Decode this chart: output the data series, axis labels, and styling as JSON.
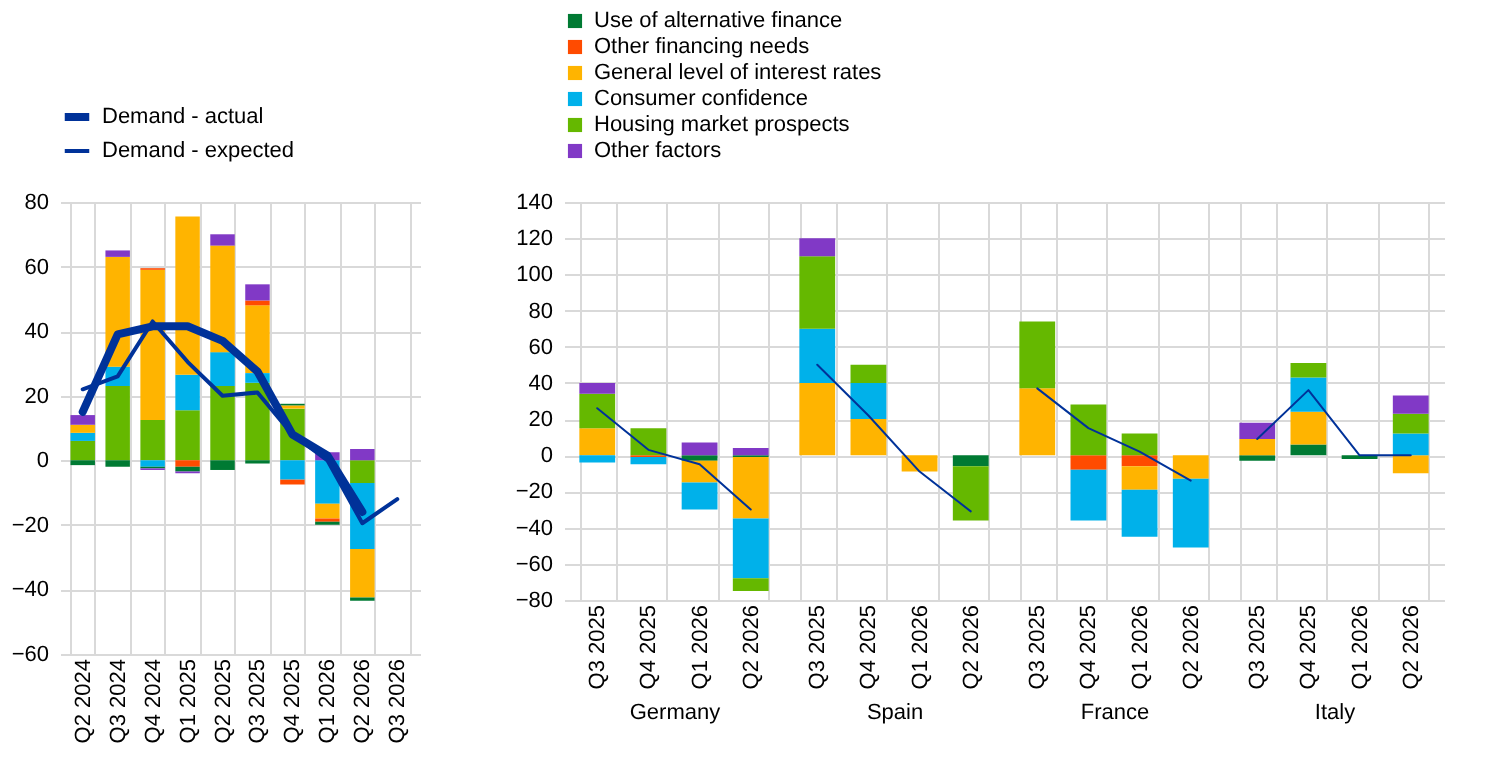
{
  "chart_data": [
    {
      "type": "bar",
      "stacked": true,
      "categories": [
        "Q2 2024",
        "Q3 2024",
        "Q4 2024",
        "Q1 2025",
        "Q2 2025",
        "Q3 2025",
        "Q4 2025",
        "Q1 2026",
        "Q2 2026",
        "Q3 2026"
      ],
      "ylim": [
        -60,
        80
      ],
      "yticks": [
        -60,
        -40,
        -20,
        0,
        20,
        40,
        60,
        80
      ],
      "grid": true,
      "legend": "top left",
      "series": [
        {
          "color": "#65b800",
          "values": [
            6,
            23,
            12.5,
            15.5,
            23,
            24,
            16,
            null,
            -7,
            null
          ]
        },
        {
          "color": "#00b1ea",
          "values": [
            2.5,
            6,
            -2,
            11,
            10.5,
            3,
            -6,
            -13.5,
            -20.5,
            null
          ]
        },
        {
          "color": "#ffb400",
          "values": [
            2.5,
            34,
            46.5,
            49,
            33,
            21,
            1,
            -4.5,
            -15,
            null
          ]
        },
        {
          "color": "#ff4b00",
          "values": [
            null,
            null,
            0.5,
            -2,
            null,
            1.5,
            -1.5,
            -1,
            null,
            null
          ]
        },
        {
          "color": "#007a33",
          "values": [
            -1.5,
            -2,
            -0.5,
            -1.5,
            -3,
            -1,
            0.5,
            -1,
            -1,
            null
          ]
        },
        {
          "color": "#8139c6",
          "values": [
            3,
            2,
            -0.5,
            -0.5,
            3.5,
            5,
            null,
            2.5,
            3.5,
            null
          ]
        },
        {
          "type": "line",
          "name": "Demand - actual",
          "color": "#003299",
          "values": [
            15,
            39,
            41.5,
            41.5,
            37,
            27.5,
            8,
            1.5,
            -16,
            null
          ]
        },
        {
          "type": "line",
          "name": "Demand - expected",
          "color": "#003299",
          "values": [
            22,
            26,
            43,
            30.5,
            20,
            21,
            8,
            0,
            -19.5,
            -12
          ]
        }
      ]
    },
    {
      "type": "bar",
      "stacked": true,
      "categories": [
        "Q3 2025",
        "Q4 2025",
        "Q1 2026",
        "Q2 2026"
      ],
      "xlabel": "Germany",
      "ylim": [
        -80,
        140
      ],
      "yticks": [
        -80,
        -60,
        -40,
        -20,
        0,
        20,
        40,
        60,
        80,
        100,
        120,
        140
      ],
      "grid": true,
      "legend": "top",
      "series": [
        {
          "name": "Use of alternative finance",
          "color": "#007a33",
          "values": [
            null,
            null,
            -3,
            -1
          ]
        },
        {
          "name": "Other financing needs",
          "color": "#ff4b00",
          "values": [
            null,
            -1,
            null,
            null
          ]
        },
        {
          "name": "General level of interest rates",
          "color": "#ffb400",
          "values": [
            15,
            null,
            -12,
            -34
          ]
        },
        {
          "name": "Consumer confidence",
          "color": "#00b1ea",
          "values": [
            -4,
            -4,
            -15,
            -33
          ]
        },
        {
          "name": "Housing market prospects",
          "color": "#65b800",
          "values": [
            19,
            15,
            null,
            -7
          ]
        },
        {
          "name": "Other factors",
          "color": "#8139c6",
          "values": [
            6,
            null,
            7,
            4
          ]
        },
        {
          "type": "line",
          "color": "#003299",
          "values": [
            26,
            3,
            -5,
            -30
          ]
        }
      ]
    },
    {
      "type": "bar",
      "stacked": true,
      "categories": [
        "Q3 2025",
        "Q4 2025",
        "Q1 2026",
        "Q2 2026"
      ],
      "xlabel": "Spain",
      "ylim": [
        -80,
        140
      ],
      "yticks": [
        -80,
        -60,
        -40,
        -20,
        0,
        20,
        40,
        60,
        80,
        100,
        120,
        140
      ],
      "grid": true,
      "tick_labels": "x",
      "series": [
        {
          "color": "#007a33",
          "values": [
            null,
            null,
            null,
            -6
          ]
        },
        {
          "color": "#ffb400",
          "values": [
            40,
            20,
            -9,
            null
          ]
        },
        {
          "color": "#00b1ea",
          "values": [
            30,
            20,
            null,
            null
          ]
        },
        {
          "color": "#65b800",
          "values": [
            40,
            10,
            null,
            -30
          ]
        },
        {
          "color": "#8139c6",
          "values": [
            10,
            null,
            null,
            null
          ]
        },
        {
          "type": "line",
          "color": "#003299",
          "values": [
            50,
            22,
            -9,
            -31
          ]
        }
      ]
    },
    {
      "type": "bar",
      "stacked": true,
      "categories": [
        "Q3 2025",
        "Q4 2025",
        "Q1 2026",
        "Q2 2026"
      ],
      "xlabel": "France",
      "ylim": [
        -80,
        140
      ],
      "yticks": [
        -80,
        -60,
        -40,
        -20,
        0,
        20,
        40,
        60,
        80,
        100,
        120,
        140
      ],
      "grid": true,
      "tick_labels": "x",
      "series": [
        {
          "color": "#ff4b00",
          "values": [
            null,
            -8,
            -6,
            null
          ]
        },
        {
          "color": "#ffb400",
          "values": [
            37,
            null,
            -13,
            -13
          ]
        },
        {
          "color": "#00b1ea",
          "values": [
            null,
            -28,
            -26,
            -38
          ]
        },
        {
          "color": "#65b800",
          "values": [
            37,
            28,
            12,
            null
          ]
        },
        {
          "type": "line",
          "color": "#003299",
          "values": [
            37,
            15,
            2,
            -14
          ]
        }
      ]
    },
    {
      "type": "bar",
      "stacked": true,
      "categories": [
        "Q3 2025",
        "Q4 2025",
        "Q1 2026",
        "Q2 2026"
      ],
      "xlabel": "Italy",
      "ylim": [
        -80,
        140
      ],
      "yticks": [
        -80,
        -60,
        -40,
        -20,
        0,
        20,
        40,
        60,
        80,
        100,
        120,
        140
      ],
      "grid": true,
      "tick_labels": "x",
      "series": [
        {
          "color": "#007a33",
          "values": [
            -3,
            6,
            -2,
            null
          ]
        },
        {
          "color": "#ffb400",
          "values": [
            9,
            18,
            null,
            -10
          ]
        },
        {
          "color": "#00b1ea",
          "values": [
            null,
            19,
            null,
            12
          ]
        },
        {
          "color": "#65b800",
          "values": [
            null,
            8,
            null,
            11
          ]
        },
        {
          "color": "#8139c6",
          "values": [
            9,
            null,
            null,
            10
          ]
        },
        {
          "type": "line",
          "color": "#003299",
          "values": [
            9,
            36,
            0,
            0
          ]
        }
      ]
    }
  ]
}
